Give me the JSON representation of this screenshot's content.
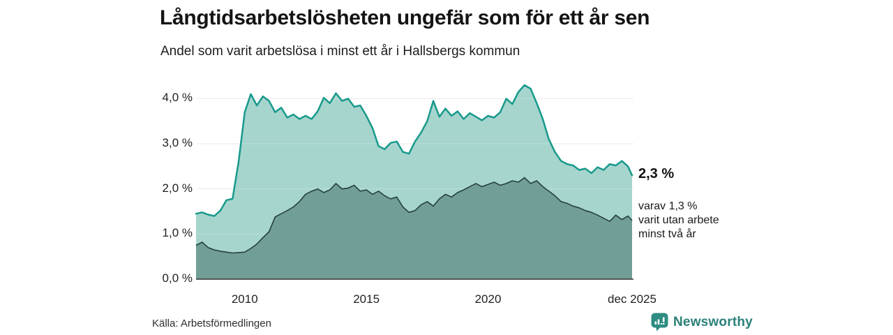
{
  "header": {
    "title": "Långtidsarbetslösheten ungefär som för ett år sen",
    "subtitle": "Andel som varit arbetslösa i minst ett år i Hallsbergs kommun"
  },
  "annotation": {
    "value_label": "2,3 %",
    "sub_line_1": "varav 1,3 %",
    "sub_line_2": "varit utan arbete",
    "sub_line_3": "minst två år"
  },
  "footer": {
    "source": "Källa: Arbetsförmedlingen",
    "brand": "Newsworthy"
  },
  "colors": {
    "outer_line": "#18998b",
    "outer_fill": "#a6d5ce",
    "inner_line": "#25413b",
    "inner_fill": "#719e97",
    "gridline": "#e2e2e2",
    "grid_overlay": "rgba(255,255,255,0.25)",
    "axis_line": "#333333",
    "brand_teal": "#2b8178"
  },
  "chart_data": {
    "type": "area",
    "title": "Långtidsarbetslösheten ungefär som för ett år sen",
    "subtitle": "Andel som varit arbetslösa i minst ett år i Hallsbergs kommun",
    "xlabel": "",
    "ylabel": "",
    "xlim": [
      2008.0,
      2025.92
    ],
    "ylim": [
      0,
      4.45
    ],
    "grid": true,
    "legend": "annotations-right",
    "y_ticks": [
      {
        "label": "4,0 %",
        "value": 4.0
      },
      {
        "label": "3,0 %",
        "value": 3.0
      },
      {
        "label": "2,0 %",
        "value": 2.0
      },
      {
        "label": "1,0 %",
        "value": 1.0
      },
      {
        "label": "0,0 %",
        "value": 0.0
      }
    ],
    "x_ticks": [
      {
        "label": "2010",
        "year": 2010
      },
      {
        "label": "2015",
        "year": 2015
      },
      {
        "label": "2020",
        "year": 2020
      },
      {
        "label": "dec 2025",
        "year": 2025.92
      }
    ],
    "x": [
      2008.0,
      2008.25,
      2008.5,
      2008.75,
      2009.0,
      2009.25,
      2009.5,
      2009.75,
      2010.0,
      2010.25,
      2010.5,
      2010.75,
      2011.0,
      2011.25,
      2011.5,
      2011.75,
      2012.0,
      2012.25,
      2012.5,
      2012.75,
      2013.0,
      2013.25,
      2013.5,
      2013.75,
      2014.0,
      2014.25,
      2014.5,
      2014.75,
      2015.0,
      2015.25,
      2015.5,
      2015.75,
      2016.0,
      2016.25,
      2016.5,
      2016.75,
      2017.0,
      2017.25,
      2017.5,
      2017.75,
      2018.0,
      2018.25,
      2018.5,
      2018.75,
      2019.0,
      2019.25,
      2019.5,
      2019.75,
      2020.0,
      2020.25,
      2020.5,
      2020.75,
      2021.0,
      2021.25,
      2021.5,
      2021.75,
      2022.0,
      2022.25,
      2022.5,
      2022.75,
      2023.0,
      2023.25,
      2023.5,
      2023.75,
      2024.0,
      2024.25,
      2024.5,
      2024.75,
      2025.0,
      2025.25,
      2025.5,
      2025.75,
      2025.92
    ],
    "series": [
      {
        "name": "Arbetslösa minst ett år",
        "color": "#18998b",
        "fill": "#a6d5ce",
        "end_value": 2.3,
        "end_label": "2,3 %",
        "values": [
          1.45,
          1.48,
          1.43,
          1.4,
          1.52,
          1.75,
          1.78,
          2.6,
          3.7,
          4.1,
          3.85,
          4.05,
          3.95,
          3.7,
          3.8,
          3.58,
          3.65,
          3.55,
          3.62,
          3.55,
          3.72,
          4.02,
          3.9,
          4.12,
          3.95,
          4.0,
          3.82,
          3.85,
          3.62,
          3.35,
          2.95,
          2.88,
          3.02,
          3.05,
          2.82,
          2.78,
          3.05,
          3.25,
          3.5,
          3.95,
          3.6,
          3.78,
          3.62,
          3.72,
          3.55,
          3.68,
          3.6,
          3.52,
          3.62,
          3.58,
          3.7,
          4.0,
          3.88,
          4.15,
          4.3,
          4.22,
          3.9,
          3.55,
          3.1,
          2.82,
          2.62,
          2.55,
          2.52,
          2.42,
          2.45,
          2.35,
          2.48,
          2.42,
          2.55,
          2.52,
          2.62,
          2.5,
          2.3
        ]
      },
      {
        "name": "Varit utan arbete minst två år",
        "color": "#25413b",
        "fill": "#719e97",
        "end_value": 1.3,
        "end_label": "varav 1,3 %",
        "values": [
          0.75,
          0.82,
          0.7,
          0.65,
          0.62,
          0.6,
          0.58,
          0.59,
          0.6,
          0.68,
          0.78,
          0.92,
          1.05,
          1.38,
          1.45,
          1.52,
          1.6,
          1.72,
          1.88,
          1.95,
          2.0,
          1.92,
          1.98,
          2.12,
          2.0,
          2.02,
          2.08,
          1.95,
          1.98,
          1.88,
          1.95,
          1.85,
          1.78,
          1.82,
          1.6,
          1.48,
          1.52,
          1.65,
          1.72,
          1.62,
          1.78,
          1.88,
          1.82,
          1.92,
          1.98,
          2.05,
          2.12,
          2.05,
          2.1,
          2.15,
          2.08,
          2.12,
          2.18,
          2.15,
          2.25,
          2.12,
          2.18,
          2.05,
          1.95,
          1.85,
          1.72,
          1.68,
          1.62,
          1.58,
          1.52,
          1.48,
          1.42,
          1.35,
          1.28,
          1.42,
          1.32,
          1.4,
          1.3
        ]
      }
    ]
  }
}
